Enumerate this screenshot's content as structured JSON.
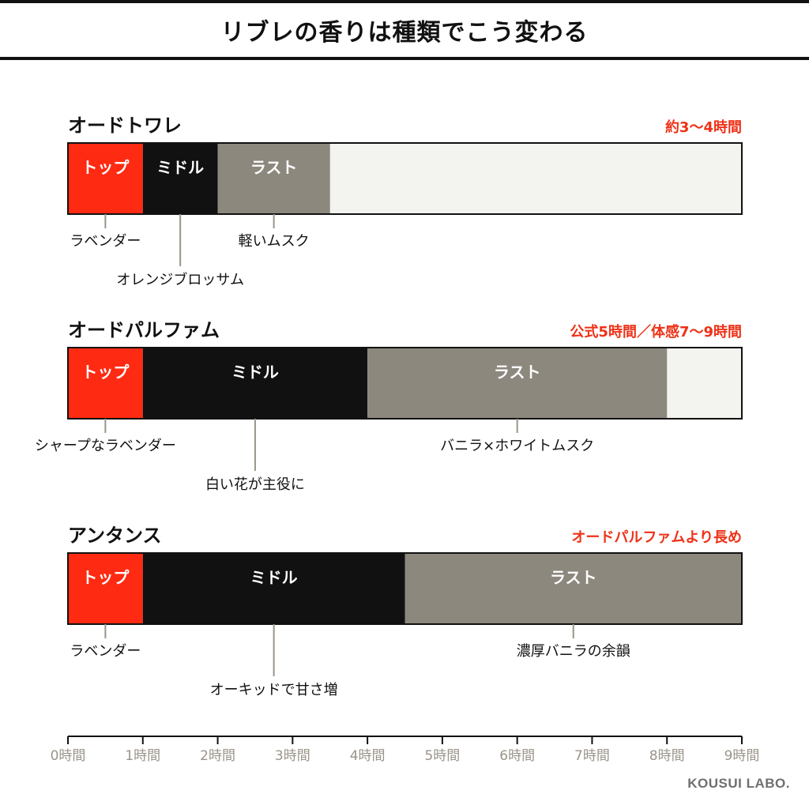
{
  "title": "リブレの香りは種類でこう変わる",
  "credit": "KOUSUI LABO.",
  "colors": {
    "top": "#ff2a12",
    "middle": "#111111",
    "last": "#8c887e",
    "empty": "#f3f3ef",
    "accent": "#ee3218",
    "axis": "#9a958a"
  },
  "chart_data": {
    "type": "bar",
    "orientation": "horizontal-stacked",
    "x_unit": "時間",
    "xlim": [
      0,
      9
    ],
    "x_ticks": [
      0,
      1,
      2,
      3,
      4,
      5,
      6,
      7,
      8,
      9
    ],
    "x_tick_labels": [
      "0時間",
      "1時間",
      "2時間",
      "3時間",
      "4時間",
      "5時間",
      "6時間",
      "7時間",
      "8時間",
      "9時間"
    ],
    "series_names": [
      "トップ",
      "ミドル",
      "ラスト"
    ],
    "rows": [
      {
        "name": "オードトワレ",
        "duration_label": "約3〜4時間",
        "segments": [
          {
            "label": "トップ",
            "start": 0,
            "end": 1
          },
          {
            "label": "ミドル",
            "start": 1,
            "end": 2
          },
          {
            "label": "ラスト",
            "start": 2,
            "end": 3.5
          }
        ],
        "notes": [
          {
            "text": "ラベンダー",
            "x": 0.5,
            "level": 1
          },
          {
            "text": "オレンジブロッサム",
            "x": 1.5,
            "level": 2
          },
          {
            "text": "軽いムスク",
            "x": 2.75,
            "level": 1
          }
        ]
      },
      {
        "name": "オードパルファム",
        "duration_label": "公式5時間／体感7〜9時間",
        "segments": [
          {
            "label": "トップ",
            "start": 0,
            "end": 1
          },
          {
            "label": "ミドル",
            "start": 1,
            "end": 4
          },
          {
            "label": "ラスト",
            "start": 4,
            "end": 8
          }
        ],
        "notes": [
          {
            "text": "シャープなラベンダー",
            "x": 0.5,
            "level": 1
          },
          {
            "text": "白い花が主役に",
            "x": 2.5,
            "level": 2
          },
          {
            "text": "バニラ×ホワイトムスク",
            "x": 6,
            "level": 1
          }
        ]
      },
      {
        "name": "アンタンス",
        "duration_label": "オードパルファムより長め",
        "segments": [
          {
            "label": "トップ",
            "start": 0,
            "end": 1
          },
          {
            "label": "ミドル",
            "start": 1,
            "end": 4.5
          },
          {
            "label": "ラスト",
            "start": 4.5,
            "end": 9
          }
        ],
        "notes": [
          {
            "text": "ラベンダー",
            "x": 0.5,
            "level": 1
          },
          {
            "text": "オーキッドで甘さ増",
            "x": 2.75,
            "level": 2
          },
          {
            "text": "濃厚バニラの余韻",
            "x": 6.75,
            "level": 1
          }
        ]
      }
    ]
  }
}
